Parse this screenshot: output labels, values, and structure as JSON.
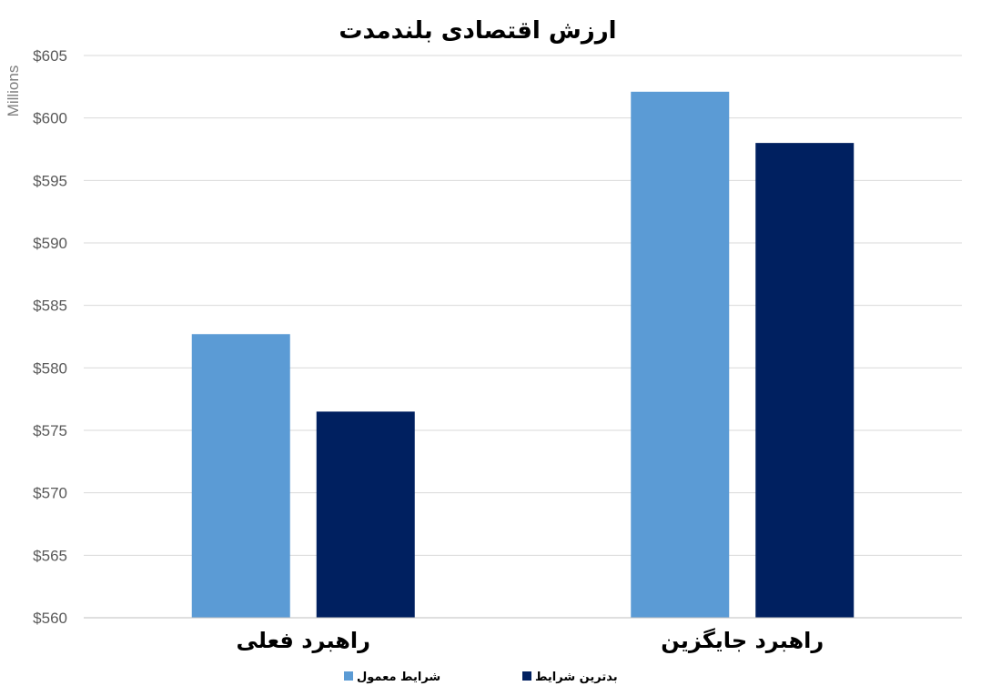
{
  "chart_data": {
    "type": "bar",
    "title": "ارزش اقتصادی بلندمدت",
    "ylabel": "Millions",
    "xlabel": "",
    "categories": [
      "راهبرد فعلی",
      "راهبرد جایگزین"
    ],
    "series": [
      {
        "name": "شرایط معمول",
        "color": "#5b9bd5",
        "values": [
          582.7,
          602.1
        ]
      },
      {
        "name": "بدترین شرایط",
        "color": "#002060",
        "values": [
          576.5,
          598.0
        ]
      }
    ],
    "ylim": [
      560,
      605
    ],
    "yticks": [
      560,
      565,
      570,
      575,
      580,
      585,
      590,
      595,
      600,
      605
    ],
    "ytick_labels": [
      "$560",
      "$565",
      "$570",
      "$575",
      "$580",
      "$585",
      "$590",
      "$595",
      "$600",
      "$605"
    ],
    "grid": true,
    "legend_position": "bottom"
  }
}
